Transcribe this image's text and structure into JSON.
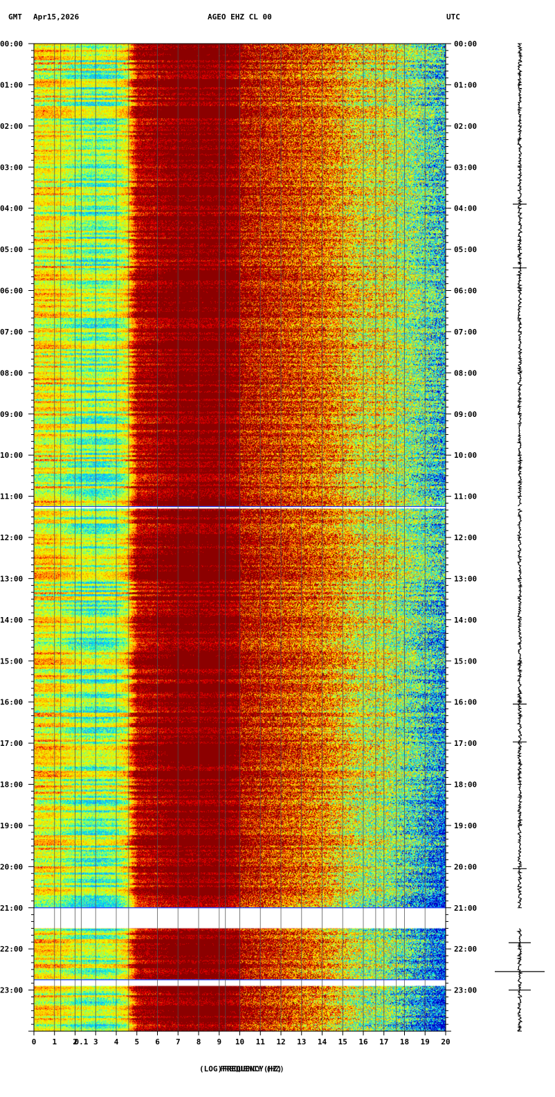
{
  "header": {
    "left_zone": "GMT",
    "date": "Apr15,2026",
    "station": "AGEO EHZ CL 00",
    "right_zone": "UTC"
  },
  "chart_data": {
    "type": "heatmap",
    "title": "AGEO EHZ CL 00",
    "xlabel": "(LOG)FREQUENCY(HZ)",
    "xlabel_overlap": "FREQUENCY (HZ)",
    "x_ticks": [
      "0",
      "1",
      "2",
      "0.1",
      "3",
      "4",
      "5",
      "6",
      "7",
      "8",
      "9",
      "10",
      "11",
      "12",
      "13",
      "14",
      "15",
      "16",
      "17",
      "18",
      "19",
      "20"
    ],
    "x_tick_positions": [
      0,
      1,
      2,
      2.3,
      3,
      4,
      5,
      6,
      7,
      8,
      9,
      10,
      11,
      12,
      13,
      14,
      15,
      16,
      17,
      18,
      19,
      20
    ],
    "xlim": [
      0,
      20
    ],
    "y_ticks": [
      "00:00",
      "01:00",
      "02:00",
      "03:00",
      "04:00",
      "05:00",
      "06:00",
      "07:00",
      "08:00",
      "09:00",
      "10:00",
      "11:00",
      "12:00",
      "13:00",
      "14:00",
      "15:00",
      "16:00",
      "17:00",
      "18:00",
      "19:00",
      "20:00",
      "21:00",
      "22:00",
      "23:00"
    ],
    "ylim_hours": [
      0,
      24
    ],
    "data_gaps_hours": [
      [
        11.25,
        11.3
      ],
      [
        21.0,
        21.5
      ],
      [
        22.75,
        22.9
      ]
    ],
    "colormap": [
      "#0000c8",
      "#1f9cff",
      "#00e6e6",
      "#7dff7d",
      "#e6ff00",
      "#ffd000",
      "#ff7f00",
      "#e60000",
      "#8c0000"
    ],
    "vertical_lines_hz": [
      1,
      1.3,
      2.0,
      2.3,
      3.0,
      4.0,
      4.6,
      6.0,
      7.0,
      8.0,
      9.0,
      9.3,
      10.0,
      11.0,
      12.0,
      13.0,
      14.0,
      15.0,
      16.0,
      16.6,
      17.0,
      17.6,
      18.0,
      19.0
    ],
    "spectral_profile": {
      "description": "relative intensity across frequency bands (0=low/blue, 1=high/dark red)",
      "freq_hz": [
        0,
        1,
        2,
        3,
        4,
        4.5,
        5,
        6,
        7,
        8,
        9,
        10,
        11,
        12,
        13,
        14,
        15,
        16,
        17,
        18,
        19,
        20
      ],
      "level": [
        0.55,
        0.55,
        0.45,
        0.4,
        0.45,
        0.55,
        0.9,
        0.95,
        1.0,
        1.0,
        1.0,
        0.95,
        0.9,
        0.85,
        0.8,
        0.75,
        0.65,
        0.55,
        0.55,
        0.45,
        0.35,
        0.25
      ]
    },
    "seismogram_events_hours": [
      3.9,
      5.45,
      16.05,
      16.97,
      20.05,
      21.85,
      22.55,
      23.0
    ]
  }
}
